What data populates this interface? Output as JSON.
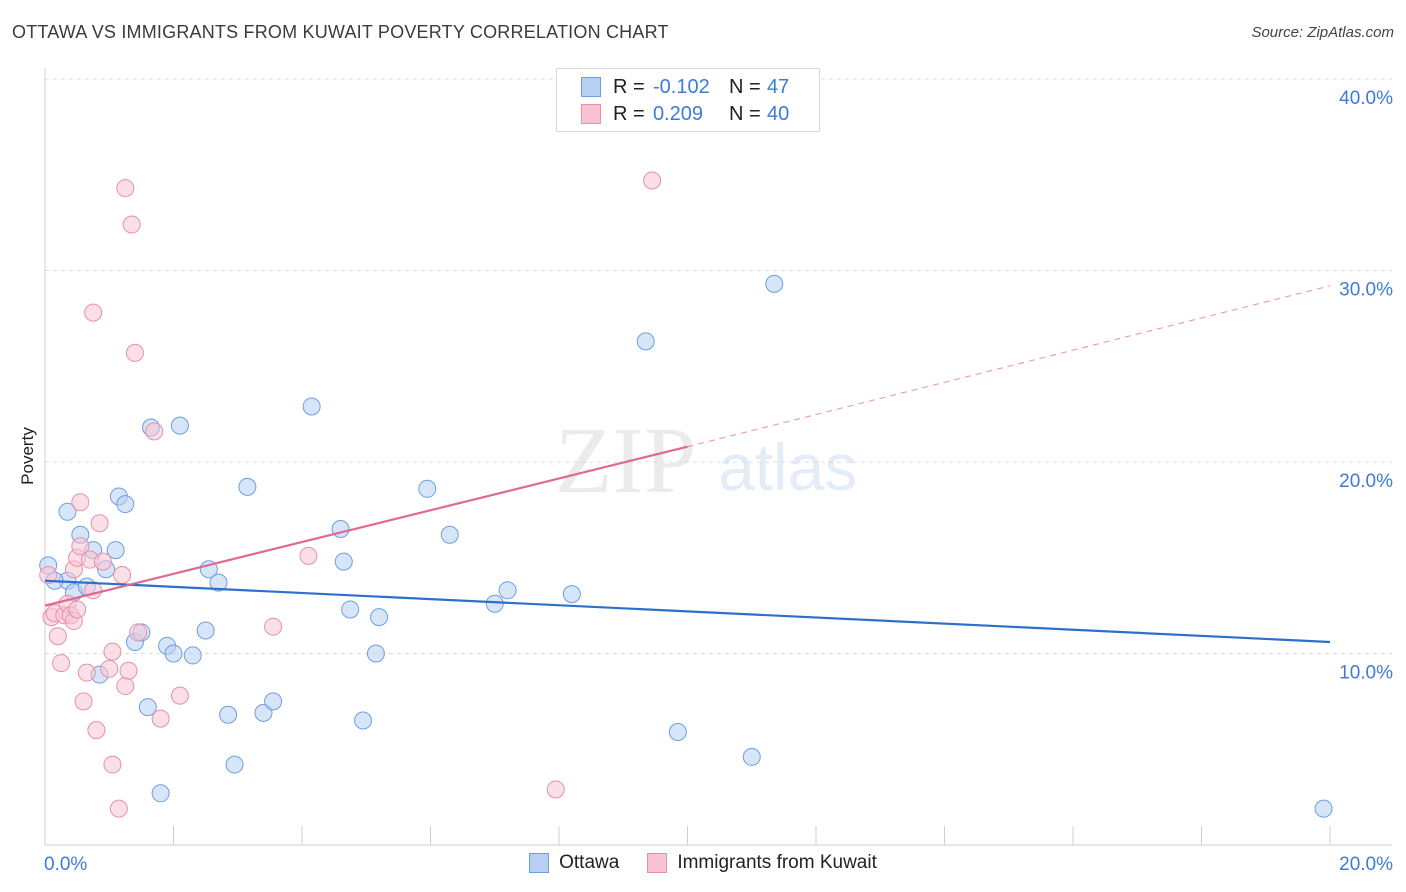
{
  "title": "OTTAWA VS IMMIGRANTS FROM KUWAIT POVERTY CORRELATION CHART",
  "source": "Source: ZipAtlas.com",
  "watermark": {
    "zip": "ZIP",
    "atlas": "atlas"
  },
  "legend": {
    "r_label": "R =",
    "n_label": "N =",
    "rows": [
      {
        "name": "Ottawa",
        "r": "-0.102",
        "n": "47"
      },
      {
        "name": "Immigrants from Kuwait",
        "r": "0.209",
        "n": "40"
      }
    ]
  },
  "chart_data": {
    "type": "scatter",
    "title": "OTTAWA VS IMMIGRANTS FROM KUWAIT POVERTY CORRELATION CHART",
    "xlabel": "",
    "ylabel": "Poverty",
    "xlim": [
      0,
      20
    ],
    "ylim": [
      0,
      40
    ],
    "x_tick_labels": [
      {
        "value": 0,
        "label": "0.0%"
      },
      {
        "value": 20,
        "label": "20.0%"
      }
    ],
    "y_tick_labels": [
      {
        "value": 10,
        "label": "10.0%"
      },
      {
        "value": 20,
        "label": "20.0%"
      },
      {
        "value": 30,
        "label": "30.0%"
      },
      {
        "value": 40,
        "label": "40.0%"
      }
    ],
    "colors": {
      "ottawa_fill": "#b7d0f2",
      "ottawa_stroke": "#6f9edf",
      "ottawa_line": "#2f6fcc",
      "kuwait_fill": "#f8c4d3",
      "kuwait_stroke": "#e98fab",
      "kuwait_line": "#e06990"
    },
    "series": [
      {
        "name": "Ottawa",
        "r": -0.102,
        "n": 47,
        "trend": {
          "x0": 0,
          "y0": 13.8,
          "x1": 20,
          "y1": 10.6
        },
        "points": [
          [
            0.05,
            14.6
          ],
          [
            0.35,
            17.4
          ],
          [
            0.35,
            13.8
          ],
          [
            0.45,
            13.2
          ],
          [
            0.55,
            16.2
          ],
          [
            0.65,
            13.5
          ],
          [
            0.75,
            15.4
          ],
          [
            0.85,
            8.9
          ],
          [
            0.95,
            14.4
          ],
          [
            1.1,
            15.4
          ],
          [
            1.15,
            18.2
          ],
          [
            1.25,
            17.8
          ],
          [
            1.4,
            10.6
          ],
          [
            1.5,
            11.1
          ],
          [
            1.6,
            7.2
          ],
          [
            1.65,
            21.8
          ],
          [
            1.8,
            2.7
          ],
          [
            1.9,
            10.4
          ],
          [
            2.0,
            10.0
          ],
          [
            2.1,
            21.9
          ],
          [
            2.3,
            9.9
          ],
          [
            2.5,
            11.2
          ],
          [
            2.55,
            14.4
          ],
          [
            2.7,
            13.7
          ],
          [
            2.85,
            6.8
          ],
          [
            2.95,
            4.2
          ],
          [
            3.15,
            18.7
          ],
          [
            3.4,
            6.9
          ],
          [
            3.55,
            7.5
          ],
          [
            4.15,
            22.9
          ],
          [
            4.6,
            16.5
          ],
          [
            4.65,
            14.8
          ],
          [
            4.75,
            12.3
          ],
          [
            4.95,
            6.5
          ],
          [
            5.15,
            10.0
          ],
          [
            5.2,
            11.9
          ],
          [
            5.95,
            18.6
          ],
          [
            6.3,
            16.2
          ],
          [
            7.0,
            12.6
          ],
          [
            7.2,
            13.3
          ],
          [
            8.2,
            13.1
          ],
          [
            9.35,
            26.3
          ],
          [
            9.85,
            5.9
          ],
          [
            11.0,
            4.6
          ],
          [
            11.35,
            29.3
          ],
          [
            19.9,
            1.9
          ],
          [
            0.15,
            13.8
          ]
        ]
      },
      {
        "name": "Immigrants from Kuwait",
        "r": 0.209,
        "n": 40,
        "trend": {
          "x0": 0,
          "y0": 12.5,
          "x1": 10,
          "y1": 20.8
        },
        "trend_dashed": {
          "x0": 10,
          "y0": 20.8,
          "x1": 20,
          "y1": 29.2
        },
        "points": [
          [
            0.05,
            14.1
          ],
          [
            0.1,
            11.9
          ],
          [
            0.15,
            12.1
          ],
          [
            0.2,
            10.9
          ],
          [
            0.25,
            9.5
          ],
          [
            0.3,
            12.0
          ],
          [
            0.35,
            12.6
          ],
          [
            0.4,
            12.0
          ],
          [
            0.45,
            11.7
          ],
          [
            0.45,
            14.4
          ],
          [
            0.5,
            12.3
          ],
          [
            0.5,
            15.0
          ],
          [
            0.55,
            15.6
          ],
          [
            0.55,
            17.9
          ],
          [
            0.6,
            7.5
          ],
          [
            0.65,
            9.0
          ],
          [
            0.7,
            14.9
          ],
          [
            0.75,
            27.8
          ],
          [
            0.75,
            13.3
          ],
          [
            0.8,
            6.0
          ],
          [
            0.85,
            16.8
          ],
          [
            0.9,
            14.8
          ],
          [
            1.0,
            9.2
          ],
          [
            1.05,
            10.1
          ],
          [
            1.05,
            4.2
          ],
          [
            1.15,
            1.9
          ],
          [
            1.2,
            14.1
          ],
          [
            1.25,
            34.3
          ],
          [
            1.25,
            8.3
          ],
          [
            1.3,
            9.1
          ],
          [
            1.35,
            32.4
          ],
          [
            1.4,
            25.7
          ],
          [
            1.45,
            11.1
          ],
          [
            1.7,
            21.6
          ],
          [
            1.8,
            6.6
          ],
          [
            2.1,
            7.8
          ],
          [
            4.1,
            15.1
          ],
          [
            3.55,
            11.4
          ],
          [
            7.95,
            2.9
          ],
          [
            9.45,
            34.7
          ]
        ]
      }
    ]
  }
}
